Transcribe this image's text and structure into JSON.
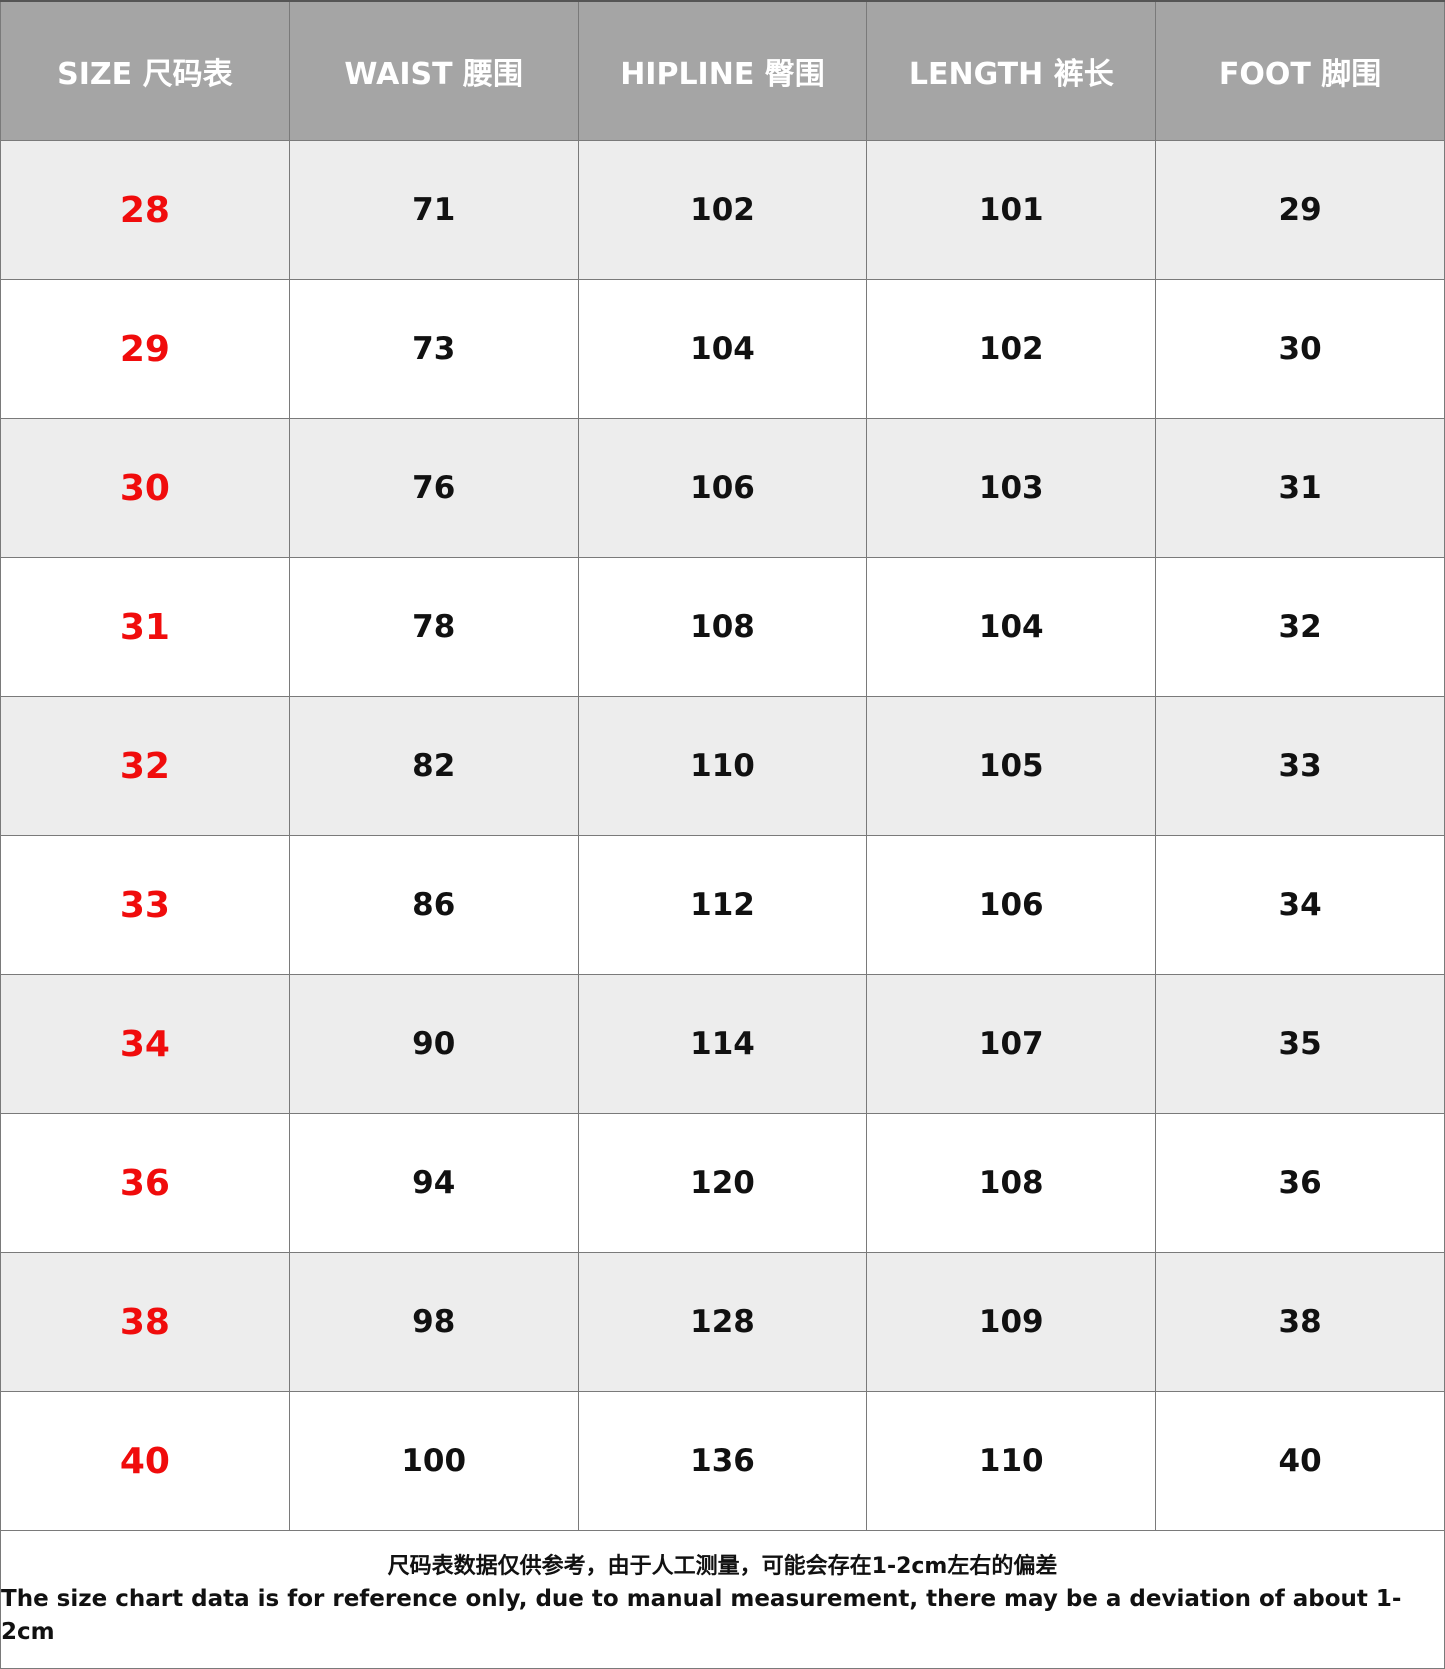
{
  "headers": [
    "SIZE 尺码表",
    "WAIST 腰围",
    "HIPLINE 臀围",
    "LENGTH 裤长",
    "FOOT 脚围"
  ],
  "rows": [
    [
      "28",
      "71",
      "102",
      "101",
      "29"
    ],
    [
      "29",
      "73",
      "104",
      "102",
      "30"
    ],
    [
      "30",
      "76",
      "106",
      "103",
      "31"
    ],
    [
      "31",
      "78",
      "108",
      "104",
      "32"
    ],
    [
      "32",
      "82",
      "110",
      "105",
      "33"
    ],
    [
      "33",
      "86",
      "112",
      "106",
      "34"
    ],
    [
      "34",
      "90",
      "114",
      "107",
      "35"
    ],
    [
      "36",
      "94",
      "120",
      "108",
      "36"
    ],
    [
      "38",
      "98",
      "128",
      "109",
      "38"
    ],
    [
      "40",
      "100",
      "136",
      "110",
      "40"
    ]
  ],
  "note": {
    "zh": "尺码表数据仅供参考，由于人工测量，可能会存在1-2cm左右的偏差",
    "en": "The size chart data is for reference only, due to manual measurement, there may be a deviation of about 1-2cm"
  },
  "colors": {
    "header_bg": "#a5a5a5",
    "size_text": "#f00c0c",
    "alt_row": "#ededed"
  }
}
